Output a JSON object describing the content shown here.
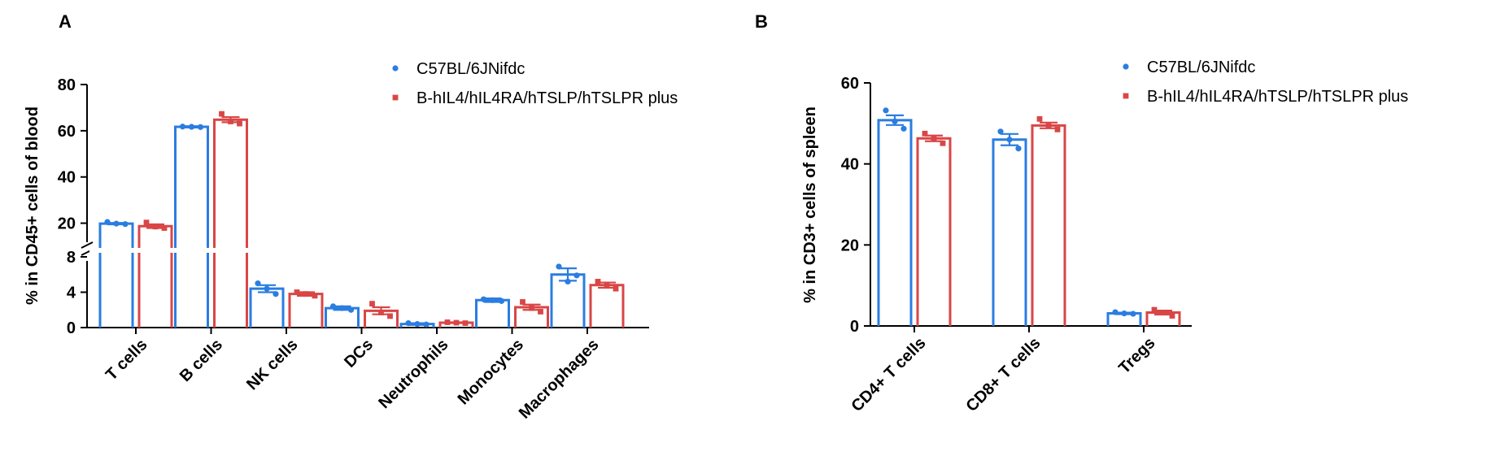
{
  "colors": {
    "wt": "#2a7de1",
    "tg": "#d94646"
  },
  "legend": [
    "C57BL/6JNifdc",
    "B-hIL4/hIL4RA/hTSLP/hTSLPR plus"
  ],
  "chart_data": [
    {
      "panel": "A",
      "type": "bar",
      "ylabel": "% in CD45+ cells of blood",
      "y_axis": "broken",
      "lower_segment": {
        "ylim": [
          0,
          8
        ],
        "ticks": [
          0,
          4,
          8
        ]
      },
      "upper_segment": {
        "ylim": [
          10,
          80
        ],
        "ticks": [
          20,
          40,
          60,
          80
        ]
      },
      "categories": [
        "T cells",
        "B cells",
        "NK cells",
        "DCs",
        "Neutrophils",
        "Monocytes",
        "Macrophages"
      ],
      "series": [
        {
          "name": "C57BL/6JNifdc",
          "values": [
            19.8,
            61.7,
            4.4,
            2.2,
            0.4,
            3.1,
            6.0
          ],
          "errors": [
            0.3,
            0.3,
            0.4,
            0.2,
            0.1,
            0.2,
            0.7
          ],
          "points": [
            [
              20.5,
              19.8,
              19.6
            ],
            [
              61.8,
              61.7,
              61.6
            ],
            [
              5.0,
              4.4,
              3.8
            ],
            [
              2.4,
              2.2,
              2.0
            ],
            [
              0.5,
              0.4,
              0.35
            ],
            [
              3.2,
              3.1,
              3.0
            ],
            [
              6.9,
              5.2,
              5.9
            ]
          ]
        },
        {
          "name": "B-hIL4/hIL4RA/hTSLP/hTSLPR plus",
          "values": [
            18.7,
            64.8,
            3.8,
            1.9,
            0.55,
            2.3,
            4.8
          ],
          "errors": [
            0.8,
            1.1,
            0.2,
            0.4,
            0.05,
            0.3,
            0.3
          ],
          "points": [
            [
              20.3,
              18.5,
              17.9
            ],
            [
              67.3,
              64.0,
              63.1
            ],
            [
              4.0,
              3.8,
              3.6
            ],
            [
              2.7,
              1.7,
              1.3
            ],
            [
              0.6,
              0.55,
              0.5
            ],
            [
              2.9,
              2.2,
              1.8
            ],
            [
              5.2,
              4.8,
              4.4
            ]
          ]
        }
      ]
    },
    {
      "panel": "B",
      "type": "bar",
      "ylabel": "% in CD3+ cells of spleen",
      "ylim": [
        0,
        60
      ],
      "ticks": [
        0,
        20,
        40,
        60
      ],
      "categories": [
        "CD4+ T cells",
        "CD8+ T cells",
        "Tregs"
      ],
      "series": [
        {
          "name": "C57BL/6JNifdc",
          "values": [
            50.8,
            46.0,
            3.1
          ],
          "errors": [
            1.2,
            1.4,
            0.2
          ],
          "points": [
            [
              53.2,
              50.5,
              48.7
            ],
            [
              48.0,
              46.0,
              43.8
            ],
            [
              3.4,
              3.1,
              3.0
            ]
          ]
        },
        {
          "name": "B-hIL4/hIL4RA/hTSLP/hTSLPR plus",
          "values": [
            46.3,
            49.5,
            3.3
          ],
          "errors": [
            0.7,
            0.7,
            0.5
          ],
          "points": [
            [
              47.5,
              46.3,
              45.1
            ],
            [
              51.1,
              49.5,
              48.5
            ],
            [
              4.0,
              3.3,
              2.5
            ]
          ]
        }
      ]
    }
  ],
  "panels": [
    {
      "label": "A"
    },
    {
      "label": "B"
    }
  ]
}
